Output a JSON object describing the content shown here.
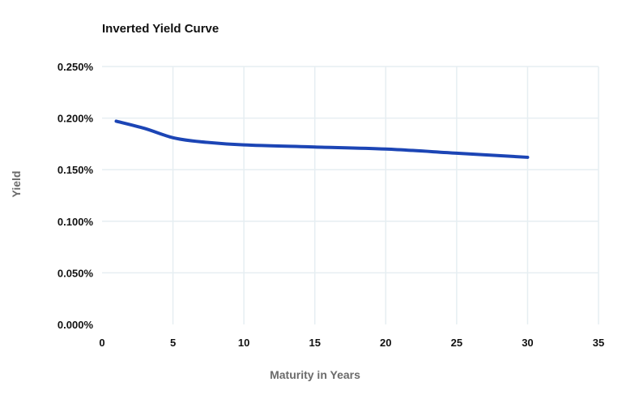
{
  "chart_data": {
    "type": "line",
    "title": "Inverted Yield Curve",
    "xlabel": "Maturity in Years",
    "ylabel": "Yield",
    "xlim": [
      0,
      35
    ],
    "ylim": [
      0,
      0.25
    ],
    "x_ticks": [
      0,
      5,
      10,
      15,
      20,
      25,
      30,
      35
    ],
    "x_tick_labels": [
      "0",
      "5",
      "10",
      "15",
      "20",
      "25",
      "30",
      "35"
    ],
    "y_ticks": [
      0,
      0.05,
      0.1,
      0.15,
      0.2,
      0.25
    ],
    "y_tick_labels": [
      "0.000%",
      "0.050%",
      "0.100%",
      "0.150%",
      "0.200%",
      "0.250%"
    ],
    "grid": true,
    "series": [
      {
        "name": "Yield",
        "color": "#1c45b5",
        "x": [
          1,
          3,
          5,
          7,
          10,
          15,
          20,
          25,
          30
        ],
        "y": [
          0.197,
          0.19,
          0.181,
          0.177,
          0.174,
          0.172,
          0.17,
          0.166,
          0.162
        ]
      }
    ]
  }
}
